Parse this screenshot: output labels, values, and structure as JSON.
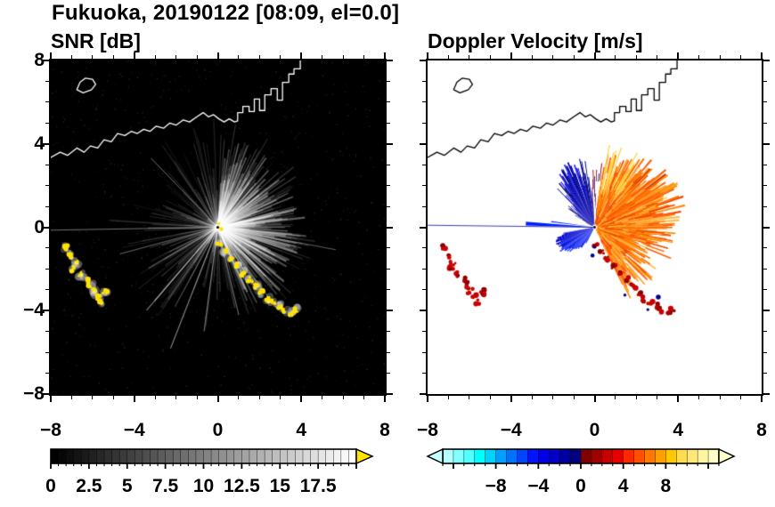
{
  "title": "Fukuoka, 20190122 [08:09, el=0.0]",
  "panels": {
    "snr": {
      "title": "SNR [dB]"
    },
    "vel": {
      "title": "Doppler Velocity [m/s]"
    }
  },
  "coastline": {
    "segments": [
      [
        [
          -8,
          3.35
        ],
        [
          -7.55,
          3.6
        ],
        [
          -7.2,
          3.45
        ],
        [
          -6.75,
          3.8
        ],
        [
          -6.4,
          3.6
        ],
        [
          -6.1,
          3.9
        ],
        [
          -5.75,
          3.8
        ],
        [
          -5.45,
          4.2
        ],
        [
          -5.1,
          4.1
        ],
        [
          -4.8,
          4.5
        ],
        [
          -4.45,
          4.4
        ],
        [
          -4.15,
          4.6
        ],
        [
          -3.85,
          4.5
        ],
        [
          -3.55,
          4.7
        ],
        [
          -3.25,
          4.6
        ],
        [
          -2.95,
          4.85
        ],
        [
          -2.6,
          4.75
        ],
        [
          -2.3,
          5.0
        ],
        [
          -2.0,
          4.9
        ],
        [
          -1.65,
          5.15
        ],
        [
          -1.35,
          5.05
        ],
        [
          -1.0,
          5.3
        ],
        [
          -0.7,
          5.5
        ],
        [
          -0.45,
          5.3
        ],
        [
          -0.2,
          5.4
        ],
        [
          0.05,
          5.2
        ],
        [
          0.3,
          5.05
        ],
        [
          0.55,
          5.2
        ],
        [
          0.8,
          5.05
        ],
        [
          0.95,
          5.1
        ],
        [
          0.95,
          5.5
        ],
        [
          1.2,
          5.5
        ],
        [
          1.2,
          5.8
        ],
        [
          1.5,
          5.8
        ],
        [
          1.5,
          5.55
        ],
        [
          1.75,
          5.55
        ],
        [
          1.75,
          6.15
        ],
        [
          2.0,
          6.15
        ],
        [
          2.0,
          5.6
        ],
        [
          2.25,
          5.6
        ],
        [
          2.25,
          6.35
        ],
        [
          2.55,
          6.35
        ],
        [
          2.55,
          6.65
        ],
        [
          2.85,
          6.65
        ],
        [
          2.85,
          6.1
        ],
        [
          3.1,
          6.1
        ],
        [
          3.1,
          6.95
        ],
        [
          3.4,
          6.95
        ],
        [
          3.4,
          7.35
        ],
        [
          3.65,
          7.35
        ],
        [
          3.65,
          7.6
        ],
        [
          3.95,
          7.6
        ],
        [
          3.95,
          8.0
        ]
      ],
      [
        [
          -6.75,
          6.6
        ],
        [
          -6.6,
          6.95
        ],
        [
          -6.35,
          7.15
        ],
        [
          -6.0,
          7.1
        ],
        [
          -5.85,
          6.85
        ],
        [
          -6.05,
          6.6
        ],
        [
          -6.45,
          6.45
        ],
        [
          -6.75,
          6.6
        ]
      ]
    ]
  },
  "clutter": {
    "arc_west": [
      [
        -7.25,
        -0.95
      ],
      [
        -7.05,
        -1.35
      ],
      [
        -6.8,
        -1.7
      ],
      [
        -6.9,
        -2.0
      ],
      [
        -6.55,
        -2.25
      ],
      [
        -6.3,
        -2.5
      ],
      [
        -6.1,
        -2.75
      ],
      [
        -5.95,
        -3.05
      ],
      [
        -5.75,
        -3.35
      ],
      [
        -5.6,
        -3.6
      ],
      [
        -5.4,
        -3.1
      ]
    ],
    "chain_south": [
      [
        0.05,
        -0.8
      ],
      [
        0.35,
        -1.15
      ],
      [
        0.6,
        -1.5
      ],
      [
        0.95,
        -1.85
      ],
      [
        1.25,
        -2.2
      ],
      [
        1.55,
        -2.5
      ],
      [
        1.85,
        -2.8
      ],
      [
        2.1,
        -3.15
      ],
      [
        2.35,
        -3.45
      ],
      [
        2.65,
        -3.6
      ],
      [
        2.95,
        -3.8
      ],
      [
        3.2,
        -4.0
      ],
      [
        3.5,
        -4.15
      ],
      [
        3.75,
        -3.95
      ]
    ],
    "inbound_specks": [
      [
        1.45,
        -3.25
      ],
      [
        2.55,
        -3.95
      ],
      [
        3.05,
        -3.35
      ],
      [
        0.0,
        -0.95
      ],
      [
        -0.1,
        -1.35
      ]
    ]
  },
  "chart_data": [
    {
      "type": "heatmap",
      "title": "SNR [dB]",
      "xlim": [
        -8,
        8
      ],
      "ylim": [
        -8,
        8
      ],
      "xticks": [
        -8,
        -4,
        0,
        4,
        8
      ],
      "yticks": [
        -8,
        -4,
        0,
        4,
        8
      ],
      "xtick_labels": [
        "−8",
        "−4",
        "0",
        "4",
        "8"
      ],
      "ytick_labels_top_to_bottom": [
        "8",
        "4",
        "0",
        "−4",
        "−8"
      ],
      "background": "#000000",
      "colorbar": {
        "range": [
          0,
          20
        ],
        "n_steps": 40,
        "palette": [
          "#000000",
          "#ffffff"
        ],
        "tick_values": [
          0,
          2.5,
          5,
          7.5,
          10,
          12.5,
          15,
          17.5
        ],
        "tick_labels": [
          "0",
          "2.5",
          "5",
          "7.5",
          "10",
          "12.5",
          "15",
          "17.5"
        ],
        "over_arrow_color": "#ffe400"
      },
      "features": {
        "radar_center": [
          0,
          0
        ],
        "ray_color": "#ffffff",
        "clutter_color": "#ffe400",
        "description": "radial sea-clutter rays from radar at origin over black background; coastline drawn in white; strong (> scale max, yellow) ground-clutter arcs to the west-southwest and south-southeast"
      }
    },
    {
      "type": "heatmap",
      "title": "Doppler Velocity [m/s]",
      "xlim": [
        -8,
        8
      ],
      "ylim": [
        -8,
        8
      ],
      "xticks": [
        -8,
        -4,
        0,
        4,
        8
      ],
      "yticks": [
        -8,
        -4,
        0,
        4,
        8
      ],
      "xtick_labels": [
        "−8",
        "−4",
        "0",
        "4",
        "8"
      ],
      "background": "#ffffff",
      "colorbar": {
        "range": [
          -13,
          13
        ],
        "steps": [
          "#b4ffff",
          "#82ffff",
          "#50ffff",
          "#00ffff",
          "#00d2ff",
          "#00a0ff",
          "#0072ff",
          "#0046ff",
          "#0014ff",
          "#0000e6",
          "#0000c8",
          "#0000a0",
          "#000080",
          "#800000",
          "#a00000",
          "#c80000",
          "#e60000",
          "#ff2800",
          "#ff5000",
          "#ff7800",
          "#ffa000",
          "#ffc800",
          "#ffdc50",
          "#ffe878",
          "#fff4a0",
          "#fffcc8"
        ],
        "tick_values": [
          -8,
          -4,
          0,
          4,
          8
        ],
        "tick_labels": [
          "−8",
          "−4",
          "0",
          "4",
          "8"
        ],
        "under_arrow_color": "#c8ffff",
        "over_arrow_color": "#ffffc8"
      },
      "features": {
        "radar_center": [
          0,
          0
        ],
        "outbound_sector_deg": [
          -64,
          82
        ],
        "outbound_colors": [
          "#ff8c00",
          "#ff7400",
          "#ffa028",
          "#ff5c10",
          "#f04a00",
          "#ffb440"
        ],
        "inbound_sector_deg": [
          93,
          152
        ],
        "inbound_colors": [
          "#000080",
          "#0000a8",
          "#0000d0",
          "#1a1aff"
        ],
        "west_spike_color": "#0020ff",
        "clutter_red": "#c80000",
        "clutter_dark_red": "#8b0000",
        "clutter_blue": "#000090",
        "description": "positive (away, orange/yellow) Doppler velocities in fan east of radar; negative (toward, blue) northwest of radar; narrow blue spike due west; red/dark-blue ground-clutter spots along coastlines"
      }
    }
  ]
}
